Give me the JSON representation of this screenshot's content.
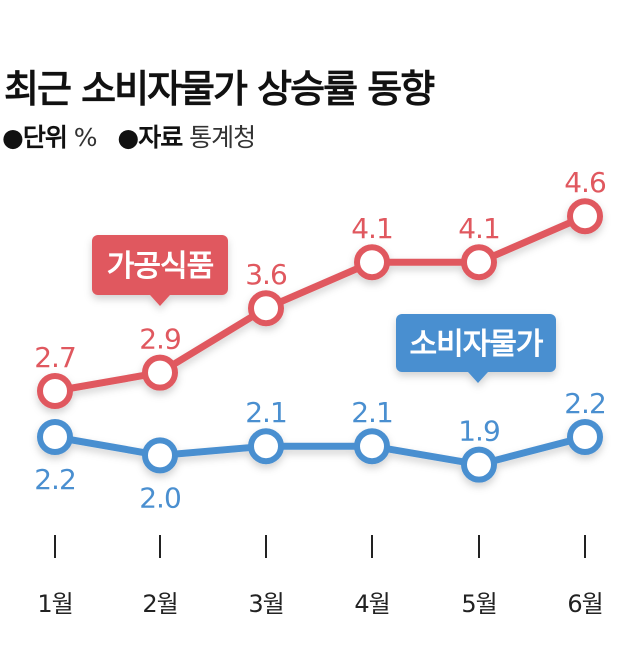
{
  "header": {
    "title": "최근 소비자물가 상승률 동향",
    "unit_label": "●단위",
    "unit_value": "%",
    "source_label": "●자료",
    "source_value": "통계청"
  },
  "chart_data": {
    "type": "line",
    "categories": [
      "1월",
      "2월",
      "3월",
      "4월",
      "5월",
      "6월"
    ],
    "series": [
      {
        "name": "가공식품",
        "values": [
          2.7,
          2.9,
          3.6,
          4.1,
          4.1,
          4.6
        ],
        "color": "#e0585f"
      },
      {
        "name": "소비자물가",
        "values": [
          2.2,
          2.0,
          2.1,
          2.1,
          1.9,
          2.2
        ],
        "color": "#4a8fd0"
      }
    ],
    "data_labels": true,
    "grid": false,
    "legend": "callouts"
  }
}
